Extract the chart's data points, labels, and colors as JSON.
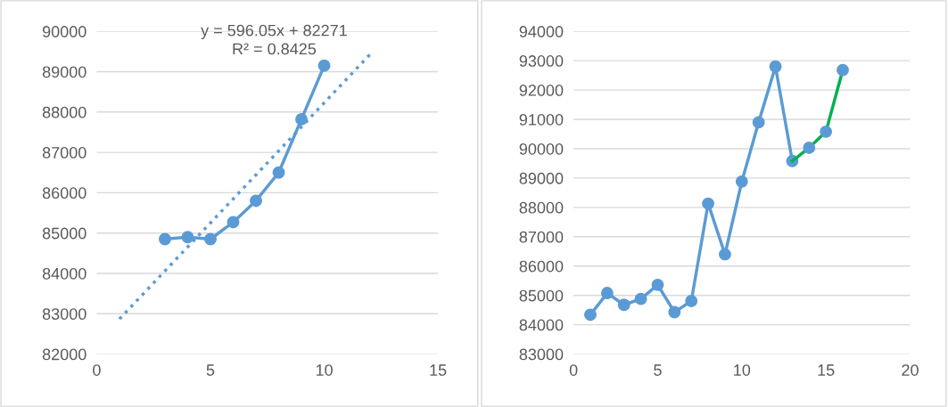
{
  "chart_data": [
    {
      "type": "line",
      "xlim": [
        0,
        15
      ],
      "ylim": [
        82000,
        90000
      ],
      "xticks": [
        0,
        5,
        10,
        15
      ],
      "yticks": [
        82000,
        83000,
        84000,
        85000,
        86000,
        87000,
        88000,
        89000,
        90000
      ],
      "grid": "y",
      "legend": false,
      "annotations": [
        "y = 596.05x + 82271\nR² = 0.8425"
      ],
      "series": [
        {
          "color": "#5b9bd5",
          "x": [
            3,
            4,
            5,
            6,
            7,
            8,
            9,
            10
          ],
          "values": [
            84850,
            84900,
            84850,
            85270,
            85800,
            86500,
            87820,
            89150
          ],
          "marker": "circle",
          "line_style": "solid"
        },
        {
          "color": "#5b9bd5",
          "x": [
            1,
            12
          ],
          "values": [
            82870,
            89420
          ],
          "marker": "none",
          "line_style": "dotted"
        }
      ]
    },
    {
      "type": "line",
      "xlim": [
        0,
        20
      ],
      "ylim": [
        83000,
        94000
      ],
      "xticks": [
        0,
        5,
        10,
        15,
        20
      ],
      "yticks": [
        83000,
        84000,
        85000,
        86000,
        87000,
        88000,
        89000,
        90000,
        91000,
        92000,
        93000,
        94000
      ],
      "grid": "y",
      "legend": false,
      "series": [
        {
          "color": "#5b9bd5",
          "x": [
            1,
            2,
            3,
            4,
            5,
            6,
            7,
            8,
            9,
            10,
            11,
            12,
            13
          ],
          "values": [
            84340,
            85080,
            84680,
            84880,
            85360,
            84430,
            84810,
            88130,
            86400,
            88880,
            90900,
            92800,
            89580
          ],
          "marker": "circle",
          "line_style": "solid"
        },
        {
          "color": "#00b050",
          "x": [
            13,
            14,
            15,
            16
          ],
          "values": [
            89580,
            90030,
            90580,
            92680
          ],
          "marker": "none",
          "line_style": "solid"
        },
        {
          "type": "scatter",
          "color": "#5b9bd5",
          "x": [
            14,
            15,
            16
          ],
          "values": [
            90030,
            90580,
            92680
          ],
          "marker": "circle"
        }
      ]
    }
  ]
}
